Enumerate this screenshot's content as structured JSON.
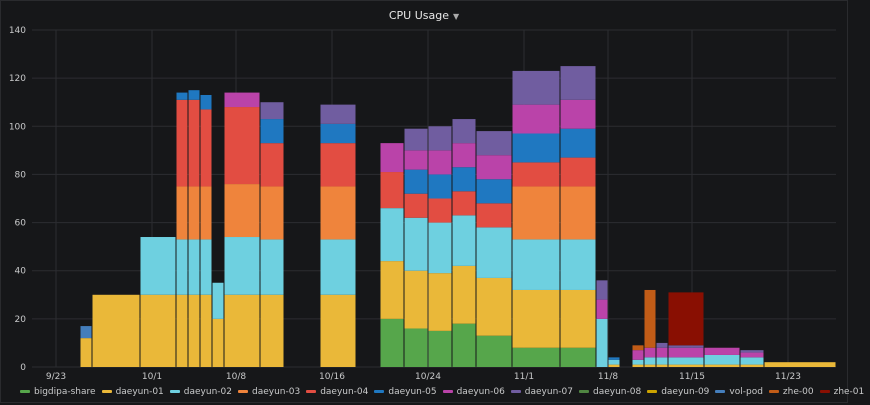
{
  "chart_data": {
    "type": "area",
    "title": "CPU Usage",
    "ylim": [
      0,
      140
    ],
    "yticks": [
      0,
      20,
      40,
      60,
      80,
      100,
      120,
      140
    ],
    "xlim": [
      "2023-09-21",
      "2023-11-27"
    ],
    "xticks": [
      {
        "label": "9/23",
        "date": "2023-09-23"
      },
      {
        "label": "10/1",
        "date": "2023-10-01"
      },
      {
        "label": "10/8",
        "date": "2023-10-08"
      },
      {
        "label": "10/16",
        "date": "2023-10-16"
      },
      {
        "label": "10/24",
        "date": "2023-10-24"
      },
      {
        "label": "11/1",
        "date": "2023-11-01"
      },
      {
        "label": "11/8",
        "date": "2023-11-08"
      },
      {
        "label": "11/15",
        "date": "2023-11-15"
      },
      {
        "label": "11/23",
        "date": "2023-11-23"
      }
    ],
    "grid": true,
    "stacked": true,
    "legend_position": "bottom",
    "series": [
      {
        "name": "bigdipa-share",
        "color": "#56a64b"
      },
      {
        "name": "daeyun-01",
        "color": "#eab839"
      },
      {
        "name": "daeyun-02",
        "color": "#6ed0e0"
      },
      {
        "name": "daeyun-03",
        "color": "#ef843c"
      },
      {
        "name": "daeyun-04",
        "color": "#e24d42"
      },
      {
        "name": "daeyun-05",
        "color": "#1f78c1"
      },
      {
        "name": "daeyun-06",
        "color": "#ba43a9"
      },
      {
        "name": "daeyun-07",
        "color": "#705da0"
      },
      {
        "name": "daeyun-08",
        "color": "#508642"
      },
      {
        "name": "daeyun-09",
        "color": "#cca300"
      },
      {
        "name": "vol-pod",
        "color": "#447ebc"
      },
      {
        "name": "zhe-00",
        "color": "#c15c17"
      },
      {
        "name": "zhe-01",
        "color": "#890f02"
      }
    ],
    "segments": [
      {
        "start": "2023-09-25",
        "end": "2023-09-26",
        "values": {
          "daeyun-01": 12,
          "vol-pod": 5
        }
      },
      {
        "start": "2023-09-26",
        "end": "2023-09-30",
        "values": {
          "daeyun-01": 30
        }
      },
      {
        "start": "2023-09-30",
        "end": "2023-10-03",
        "values": {
          "daeyun-01": 30,
          "daeyun-02": 24
        }
      },
      {
        "start": "2023-10-03",
        "end": "2023-10-04",
        "values": {
          "daeyun-01": 30,
          "daeyun-02": 23,
          "daeyun-03": 22,
          "daeyun-04": 36,
          "daeyun-05": 3
        }
      },
      {
        "start": "2023-10-04",
        "end": "2023-10-05",
        "values": {
          "daeyun-01": 30,
          "daeyun-02": 23,
          "daeyun-03": 22,
          "daeyun-04": 36,
          "daeyun-05": 4
        }
      },
      {
        "start": "2023-10-05",
        "end": "2023-10-06",
        "values": {
          "daeyun-01": 30,
          "daeyun-02": 23,
          "daeyun-03": 22,
          "daeyun-04": 32,
          "daeyun-05": 6
        }
      },
      {
        "start": "2023-10-06",
        "end": "2023-10-07",
        "values": {
          "daeyun-01": 20,
          "daeyun-02": 15
        }
      },
      {
        "start": "2023-10-07",
        "end": "2023-10-10",
        "values": {
          "daeyun-01": 30,
          "daeyun-02": 24,
          "daeyun-03": 22,
          "daeyun-04": 32,
          "daeyun-06": 6
        }
      },
      {
        "start": "2023-10-10",
        "end": "2023-10-12",
        "values": {
          "daeyun-01": 30,
          "daeyun-02": 23,
          "daeyun-03": 22,
          "daeyun-04": 18,
          "daeyun-05": 10,
          "daeyun-07": 7
        }
      },
      {
        "start": "2023-10-15",
        "end": "2023-10-18",
        "values": {
          "daeyun-01": 30,
          "daeyun-02": 23,
          "daeyun-03": 22,
          "daeyun-04": 18,
          "daeyun-05": 8,
          "daeyun-07": 8
        }
      },
      {
        "start": "2023-10-20",
        "end": "2023-10-22",
        "values": {
          "daeyun-01": 24,
          "daeyun-02": 22,
          "daeyun-04": 15,
          "daeyun-06": 12,
          "bigdipa-share": 20
        }
      },
      {
        "start": "2023-10-22",
        "end": "2023-10-24",
        "values": {
          "daeyun-01": 24,
          "daeyun-02": 22,
          "daeyun-04": 10,
          "daeyun-05": 10,
          "daeyun-06": 8,
          "daeyun-07": 9,
          "bigdipa-share": 16
        }
      },
      {
        "start": "2023-10-24",
        "end": "2023-10-26",
        "values": {
          "daeyun-01": 24,
          "daeyun-02": 21,
          "daeyun-04": 10,
          "daeyun-05": 10,
          "daeyun-06": 10,
          "daeyun-07": 10,
          "bigdipa-share": 15
        }
      },
      {
        "start": "2023-10-26",
        "end": "2023-10-28",
        "values": {
          "daeyun-01": 24,
          "daeyun-02": 21,
          "daeyun-04": 10,
          "daeyun-05": 10,
          "daeyun-06": 10,
          "daeyun-07": 10,
          "bigdipa-share": 18
        }
      },
      {
        "start": "2023-10-28",
        "end": "2023-10-31",
        "values": {
          "daeyun-01": 24,
          "daeyun-02": 21,
          "daeyun-04": 10,
          "daeyun-05": 10,
          "daeyun-06": 10,
          "daeyun-07": 10,
          "bigdipa-share": 13
        }
      },
      {
        "start": "2023-10-31",
        "end": "2023-11-04",
        "values": {
          "daeyun-01": 24,
          "daeyun-02": 21,
          "daeyun-03": 22,
          "daeyun-04": 10,
          "daeyun-05": 12,
          "daeyun-06": 12,
          "daeyun-07": 14,
          "bigdipa-share": 8
        }
      },
      {
        "start": "2023-11-04",
        "end": "2023-11-07",
        "values": {
          "daeyun-01": 24,
          "daeyun-02": 21,
          "daeyun-03": 22,
          "daeyun-04": 12,
          "daeyun-05": 12,
          "daeyun-06": 12,
          "daeyun-07": 14,
          "bigdipa-share": 8
        }
      },
      {
        "start": "2023-11-07",
        "end": "2023-11-08",
        "values": {
          "daeyun-02": 20,
          "daeyun-06": 8,
          "daeyun-07": 8
        }
      },
      {
        "start": "2023-11-08",
        "end": "2023-11-09",
        "values": {
          "daeyun-01": 1,
          "daeyun-02": 2,
          "daeyun-05": 1
        }
      },
      {
        "start": "2023-11-10",
        "end": "2023-11-11",
        "values": {
          "daeyun-01": 1,
          "daeyun-02": 2,
          "daeyun-06": 4,
          "zhe-00": 2
        }
      },
      {
        "start": "2023-11-11",
        "end": "2023-11-12",
        "values": {
          "daeyun-01": 1,
          "daeyun-02": 3,
          "daeyun-06": 4,
          "zhe-00": 24
        }
      },
      {
        "start": "2023-11-12",
        "end": "2023-11-13",
        "values": {
          "daeyun-01": 1,
          "daeyun-02": 3,
          "daeyun-06": 4,
          "daeyun-07": 2
        }
      },
      {
        "start": "2023-11-13",
        "end": "2023-11-16",
        "values": {
          "daeyun-01": 1,
          "daeyun-02": 3,
          "daeyun-06": 4,
          "daeyun-07": 1,
          "zhe-01": 22
        }
      },
      {
        "start": "2023-11-16",
        "end": "2023-11-19",
        "values": {
          "daeyun-01": 1,
          "daeyun-02": 4,
          "daeyun-06": 3
        }
      },
      {
        "start": "2023-11-19",
        "end": "2023-11-21",
        "values": {
          "daeyun-01": 1,
          "daeyun-02": 3,
          "daeyun-06": 2,
          "daeyun-07": 1
        }
      },
      {
        "start": "2023-11-21",
        "end": "2023-11-27",
        "values": {
          "daeyun-01": 2
        }
      }
    ]
  }
}
